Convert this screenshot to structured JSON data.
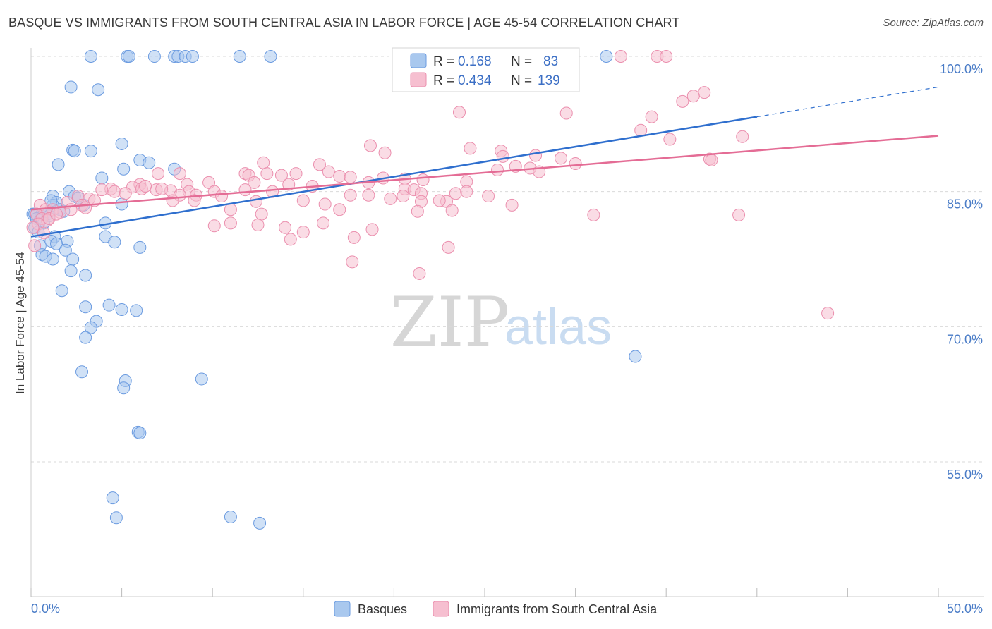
{
  "title": "BASQUE VS IMMIGRANTS FROM SOUTH CENTRAL ASIA IN LABOR FORCE | AGE 45-54 CORRELATION CHART",
  "source": "Source: ZipAtlas.com",
  "watermark": {
    "zip": "ZIP",
    "atlas": "atlas"
  },
  "colors": {
    "blue_fill": "#a9c8ee",
    "blue_stroke": "#6b9be0",
    "blue_line": "#2f6fce",
    "pink_fill": "#f6bfd0",
    "pink_stroke": "#eb8fae",
    "pink_line": "#e46c95",
    "tick_text": "#4a7cc7",
    "grid": "#d9d9d9"
  },
  "legend": {
    "rows": [
      {
        "r_label": "R =",
        "r_value": "0.168",
        "n_label": "N =",
        "n_value": "83"
      },
      {
        "r_label": "R =",
        "r_value": "0.434",
        "n_label": "N =",
        "n_value": "139"
      }
    ]
  },
  "chart_data": {
    "type": "scatter",
    "title": "BASQUE VS IMMIGRANTS FROM SOUTH CENTRAL ASIA IN LABOR FORCE | AGE 45-54 CORRELATION CHART",
    "xlabel": "",
    "ylabel": "In Labor Force | Age 45-54",
    "xlim": [
      0,
      50
    ],
    "ylim": [
      40,
      103
    ],
    "x_tick_labels": [
      "0.0%",
      "50.0%"
    ],
    "y_ticks": [
      100,
      85,
      70,
      55
    ],
    "y_tick_labels": [
      "100.0%",
      "85.0%",
      "70.0%",
      "55.0%"
    ],
    "grid": "horizontal dashed",
    "legend_placement": "bottom-center",
    "series": [
      {
        "name": "Basques",
        "color": "#a9c8ee",
        "R": 0.168,
        "N": 83,
        "trend": {
          "x": [
            0,
            40
          ],
          "y": [
            80.0,
            93.3
          ],
          "dashed_to": [
            50,
            96.6
          ]
        },
        "points": [
          [
            3.3,
            100
          ],
          [
            5.3,
            100
          ],
          [
            5.4,
            100
          ],
          [
            6.8,
            100
          ],
          [
            7.9,
            100
          ],
          [
            8.1,
            100
          ],
          [
            8.5,
            100
          ],
          [
            8.9,
            100
          ],
          [
            11.5,
            100
          ],
          [
            13.2,
            100
          ],
          [
            21.7,
            100
          ],
          [
            31.7,
            100
          ],
          [
            2.2,
            96.6
          ],
          [
            3.7,
            96.3
          ],
          [
            5.0,
            90.3
          ],
          [
            2.3,
            89.6
          ],
          [
            2.4,
            89.5
          ],
          [
            3.3,
            89.5
          ],
          [
            6.0,
            88.5
          ],
          [
            6.5,
            88.2
          ],
          [
            1.5,
            88.0
          ],
          [
            5.1,
            87.5
          ],
          [
            7.9,
            87.5
          ],
          [
            3.9,
            86.5
          ],
          [
            1.2,
            84.5
          ],
          [
            2.1,
            85.0
          ],
          [
            2.4,
            84.5
          ],
          [
            2.6,
            84.3
          ],
          [
            1.4,
            83.8
          ],
          [
            1.2,
            83.5
          ],
          [
            2.9,
            83.5
          ],
          [
            5.0,
            83.6
          ],
          [
            1.6,
            83.0
          ],
          [
            1.8,
            82.8
          ],
          [
            0.1,
            82.5
          ],
          [
            0.2,
            82.5
          ],
          [
            0.3,
            82.5
          ],
          [
            0.6,
            82.5
          ],
          [
            0.7,
            82.5
          ],
          [
            0.9,
            82.5
          ],
          [
            1.0,
            82.3
          ],
          [
            0.3,
            82.0
          ],
          [
            0.5,
            81.8
          ],
          [
            0.7,
            81.5
          ],
          [
            0.2,
            81.0
          ],
          [
            0.4,
            80.5
          ],
          [
            4.1,
            81.5
          ],
          [
            1.3,
            80.0
          ],
          [
            2.0,
            79.5
          ],
          [
            4.1,
            80.0
          ],
          [
            1.1,
            79.5
          ],
          [
            1.4,
            79.2
          ],
          [
            0.5,
            79.0
          ],
          [
            4.6,
            79.4
          ],
          [
            6.0,
            78.8
          ],
          [
            1.9,
            78.5
          ],
          [
            0.6,
            78.0
          ],
          [
            0.8,
            77.8
          ],
          [
            1.2,
            77.5
          ],
          [
            2.3,
            77.5
          ],
          [
            2.2,
            76.2
          ],
          [
            3.0,
            75.7
          ],
          [
            1.7,
            74.0
          ],
          [
            4.3,
            72.4
          ],
          [
            3.0,
            72.2
          ],
          [
            5.0,
            71.9
          ],
          [
            5.8,
            71.8
          ],
          [
            3.6,
            70.6
          ],
          [
            3.3,
            69.9
          ],
          [
            3.0,
            68.8
          ],
          [
            33.3,
            66.7
          ],
          [
            2.8,
            65.0
          ],
          [
            9.4,
            64.2
          ],
          [
            5.2,
            64.0
          ],
          [
            5.1,
            63.2
          ],
          [
            5.9,
            58.3
          ],
          [
            6.0,
            58.2
          ],
          [
            4.5,
            51.0
          ],
          [
            4.7,
            48.8
          ],
          [
            11.0,
            48.9
          ],
          [
            12.6,
            48.2
          ],
          [
            1.1,
            84.0
          ]
        ]
      },
      {
        "name": "Immigrants from South Central Asia",
        "color": "#f6bfd0",
        "R": 0.434,
        "N": 139,
        "trend": {
          "x": [
            0,
            50
          ],
          "y": [
            83.0,
            91.2
          ]
        },
        "points": [
          [
            32.5,
            100
          ],
          [
            34.5,
            100
          ],
          [
            35.0,
            100
          ],
          [
            29.6,
            100
          ],
          [
            37.1,
            96.0
          ],
          [
            36.5,
            95.6
          ],
          [
            35.9,
            95.0
          ],
          [
            23.6,
            93.8
          ],
          [
            29.5,
            93.7
          ],
          [
            34.2,
            93.3
          ],
          [
            33.6,
            91.8
          ],
          [
            39.2,
            91.1
          ],
          [
            35.2,
            90.8
          ],
          [
            18.7,
            90.1
          ],
          [
            24.2,
            89.8
          ],
          [
            25.9,
            89.5
          ],
          [
            19.5,
            89.3
          ],
          [
            27.8,
            89.0
          ],
          [
            26.0,
            88.9
          ],
          [
            29.2,
            88.7
          ],
          [
            37.4,
            88.6
          ],
          [
            37.5,
            88.5
          ],
          [
            12.8,
            88.2
          ],
          [
            15.9,
            88.0
          ],
          [
            26.7,
            87.8
          ],
          [
            27.5,
            87.6
          ],
          [
            25.7,
            87.4
          ],
          [
            28.0,
            87.2
          ],
          [
            16.4,
            87.2
          ],
          [
            7.0,
            87.0
          ],
          [
            8.2,
            87.0
          ],
          [
            11.8,
            87.0
          ],
          [
            13.0,
            87.0
          ],
          [
            14.6,
            87.0
          ],
          [
            13.8,
            86.8
          ],
          [
            12.0,
            86.8
          ],
          [
            17.0,
            86.7
          ],
          [
            17.6,
            86.6
          ],
          [
            19.4,
            86.5
          ],
          [
            20.6,
            86.4
          ],
          [
            21.6,
            86.3
          ],
          [
            24.0,
            86.1
          ],
          [
            9.8,
            86.0
          ],
          [
            12.3,
            86.0
          ],
          [
            18.6,
            86.0
          ],
          [
            6.0,
            85.8
          ],
          [
            8.6,
            85.8
          ],
          [
            14.2,
            85.8
          ],
          [
            15.5,
            85.6
          ],
          [
            4.4,
            85.3
          ],
          [
            5.6,
            85.5
          ],
          [
            6.1,
            85.3
          ],
          [
            6.9,
            85.2
          ],
          [
            7.7,
            85.1
          ],
          [
            8.7,
            85.0
          ],
          [
            10.1,
            85.0
          ],
          [
            11.8,
            85.2
          ],
          [
            13.3,
            85.0
          ],
          [
            20.6,
            85.3
          ],
          [
            21.1,
            85.2
          ],
          [
            23.4,
            84.8
          ],
          [
            25.2,
            84.5
          ],
          [
            3.9,
            85.2
          ],
          [
            4.6,
            85.0
          ],
          [
            5.2,
            84.8
          ],
          [
            8.2,
            84.6
          ],
          [
            9.1,
            84.6
          ],
          [
            10.5,
            84.5
          ],
          [
            17.6,
            84.6
          ],
          [
            18.6,
            84.6
          ],
          [
            20.5,
            84.5
          ],
          [
            21.5,
            84.8
          ],
          [
            2.6,
            84.5
          ],
          [
            3.2,
            84.2
          ],
          [
            3.5,
            84.0
          ],
          [
            2.0,
            83.8
          ],
          [
            2.8,
            83.5
          ],
          [
            3.0,
            83.2
          ],
          [
            7.8,
            84.0
          ],
          [
            9.0,
            84.0
          ],
          [
            12.4,
            83.9
          ],
          [
            15.0,
            84.0
          ],
          [
            16.2,
            83.6
          ],
          [
            19.8,
            84.2
          ],
          [
            21.5,
            83.9
          ],
          [
            22.9,
            83.9
          ],
          [
            26.5,
            83.5
          ],
          [
            0.5,
            83.5
          ],
          [
            0.8,
            83.0
          ],
          [
            1.2,
            83.0
          ],
          [
            0.3,
            82.5
          ],
          [
            0.6,
            82.0
          ],
          [
            0.9,
            81.8
          ],
          [
            0.4,
            81.4
          ],
          [
            0.1,
            81.0
          ],
          [
            0.7,
            80.4
          ],
          [
            0.2,
            79.0
          ],
          [
            2.2,
            83.0
          ],
          [
            1.6,
            82.7
          ],
          [
            1.0,
            82.0
          ],
          [
            1.4,
            82.5
          ],
          [
            11.0,
            83.0
          ],
          [
            12.7,
            82.5
          ],
          [
            17.0,
            83.0
          ],
          [
            21.3,
            82.8
          ],
          [
            23.2,
            82.9
          ],
          [
            31.0,
            82.4
          ],
          [
            39.0,
            82.4
          ],
          [
            11.0,
            81.5
          ],
          [
            16.1,
            81.5
          ],
          [
            12.5,
            81.3
          ],
          [
            10.1,
            81.2
          ],
          [
            14.0,
            81.0
          ],
          [
            18.8,
            80.8
          ],
          [
            15.0,
            80.5
          ],
          [
            14.3,
            79.7
          ],
          [
            17.8,
            79.9
          ],
          [
            23.0,
            78.8
          ],
          [
            17.7,
            77.2
          ],
          [
            21.4,
            75.9
          ],
          [
            43.9,
            71.5
          ],
          [
            24.0,
            85.0
          ],
          [
            7.2,
            85.3
          ],
          [
            6.3,
            85.6
          ],
          [
            30.0,
            88.1
          ],
          [
            22.5,
            84.0
          ]
        ]
      }
    ]
  }
}
